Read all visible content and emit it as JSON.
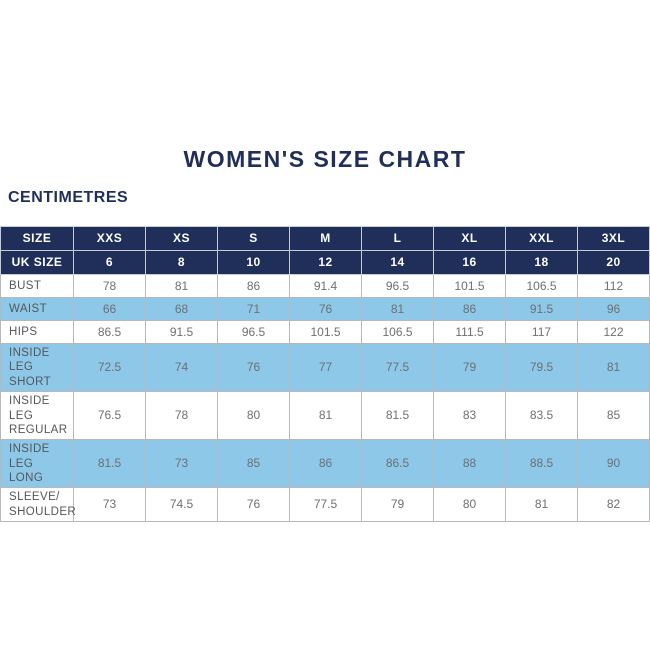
{
  "colors": {
    "navy": "#202f5a",
    "light_blue": "#8dc8e8",
    "border_gray": "#b6b8ba",
    "data_text_gray": "#6e6f72",
    "label_text_gray": "#55575b",
    "background": "#ffffff"
  },
  "chart_data": {
    "type": "table",
    "title": "WOMEN'S SIZE CHART",
    "unit": "CENTIMETRES",
    "header_rows": [
      {
        "label": "SIZE",
        "values": [
          "XXS",
          "XS",
          "S",
          "M",
          "L",
          "XL",
          "XXL",
          "3XL"
        ]
      },
      {
        "label": "UK SIZE",
        "values": [
          "6",
          "8",
          "10",
          "12",
          "14",
          "16",
          "18",
          "20"
        ]
      }
    ],
    "rows": [
      {
        "label": "BUST",
        "values": [
          "78",
          "81",
          "86",
          "91.4",
          "96.5",
          "101.5",
          "106.5",
          "112"
        ],
        "shaded": false
      },
      {
        "label": "WAIST",
        "values": [
          "66",
          "68",
          "71",
          "76",
          "81",
          "86",
          "91.5",
          "96"
        ],
        "shaded": true
      },
      {
        "label": "HIPS",
        "values": [
          "86.5",
          "91.5",
          "96.5",
          "101.5",
          "106.5",
          "111.5",
          "117",
          "122"
        ],
        "shaded": false
      },
      {
        "label": "INSIDE LEG SHORT",
        "values": [
          "72.5",
          "74",
          "76",
          "77",
          "77.5",
          "79",
          "79.5",
          "81"
        ],
        "shaded": true
      },
      {
        "label": "INSIDE LEG REGULAR",
        "values": [
          "76.5",
          "78",
          "80",
          "81",
          "81.5",
          "83",
          "83.5",
          "85"
        ],
        "shaded": false
      },
      {
        "label": "INSIDE LEG LONG",
        "values": [
          "81.5",
          "73",
          "85",
          "86",
          "86.5",
          "88",
          "88.5",
          "90"
        ],
        "shaded": true
      },
      {
        "label": "SLEEVE/ SHOULDER",
        "values": [
          "73",
          "74.5",
          "76",
          "77.5",
          "79",
          "80",
          "81",
          "82"
        ],
        "shaded": false
      }
    ]
  }
}
